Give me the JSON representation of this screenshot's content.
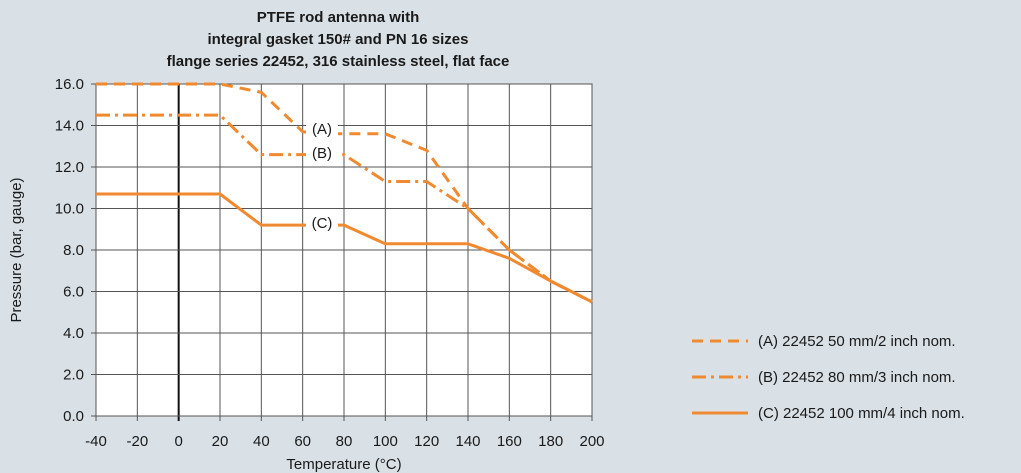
{
  "chart_data": {
    "type": "line",
    "title": [
      "PTFE rod antenna with",
      "integral gasket 150# and PN 16 sizes",
      "flange series 22452, 316 stainless steel, flat face"
    ],
    "xlabel": "Temperature (°C)",
    "ylabel": "Pressure (bar, gauge)",
    "xlim": [
      -40,
      200
    ],
    "ylim": [
      0,
      16
    ],
    "xticks": [
      "-40",
      "-20",
      "0",
      "20",
      "40",
      "60",
      "80",
      "100",
      "120",
      "140",
      "160",
      "180",
      "200"
    ],
    "yticks": [
      "0.0",
      "2.0",
      "4.0",
      "6.0",
      "8.0",
      "10.0",
      "12.0",
      "14.0",
      "16.0"
    ],
    "grid": true,
    "legend_position": "bottom-right",
    "color": "#f08a30",
    "series": [
      {
        "name": "(A) 22452 50 mm/2 inch nom.",
        "tag": "(A)",
        "style": "dashed",
        "points": [
          [
            -40,
            16.0
          ],
          [
            20,
            16.0
          ],
          [
            40,
            15.6
          ],
          [
            60,
            13.7
          ],
          [
            70,
            13.6
          ],
          [
            100,
            13.6
          ],
          [
            120,
            12.8
          ],
          [
            140,
            10.0
          ],
          [
            160,
            8.0
          ],
          [
            180,
            6.5
          ],
          [
            200,
            5.5
          ]
        ]
      },
      {
        "name": "(B) 22452 80 mm/3 inch nom.",
        "tag": "(B)",
        "style": "dashdot",
        "points": [
          [
            -40,
            14.5
          ],
          [
            20,
            14.5
          ],
          [
            40,
            12.6
          ],
          [
            60,
            12.6
          ],
          [
            80,
            12.6
          ],
          [
            100,
            11.3
          ],
          [
            120,
            11.3
          ],
          [
            140,
            10.0
          ],
          [
            160,
            8.0
          ],
          [
            180,
            6.5
          ],
          [
            200,
            5.5
          ]
        ]
      },
      {
        "name": "(C) 22452 100 mm/4 inch nom.",
        "tag": "(C)",
        "style": "solid",
        "points": [
          [
            -40,
            10.7
          ],
          [
            20,
            10.7
          ],
          [
            40,
            9.2
          ],
          [
            60,
            9.2
          ],
          [
            80,
            9.2
          ],
          [
            100,
            8.3
          ],
          [
            140,
            8.3
          ],
          [
            160,
            7.6
          ],
          [
            180,
            6.5
          ],
          [
            200,
            5.5
          ]
        ]
      }
    ]
  }
}
